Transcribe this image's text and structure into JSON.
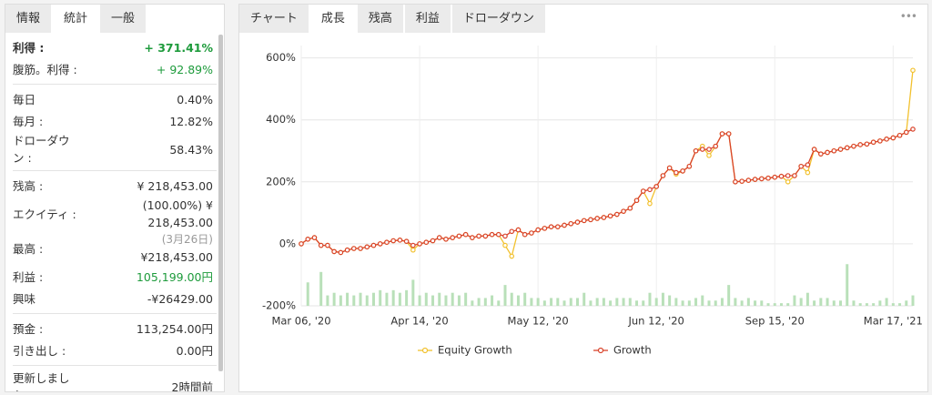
{
  "left_panel": {
    "tabs": [
      "情報",
      "統計",
      "一般"
    ],
    "active_tab": 1,
    "groups": [
      [
        {
          "label": "利得 :",
          "value": "+ 371.41%",
          "color": "#1e9b3c",
          "bold": true
        },
        {
          "label": "腹筋。利得 :",
          "value": "+ 92.89%",
          "color": "#1e9b3c"
        }
      ],
      [
        {
          "label": "毎日",
          "value": "0.40%"
        },
        {
          "label": "毎月 :",
          "value": "12.82%"
        },
        {
          "label": "ドローダウン :",
          "value": "58.43%"
        }
      ],
      [
        {
          "label": "残高 :",
          "value": "¥ 218,453.00"
        },
        {
          "label": "エクイティ :",
          "value": "(100.00%) ¥ 218,453.00"
        },
        {
          "label": "最高 :",
          "note": "(3月26日)",
          "value": "¥218,453.00"
        },
        {
          "label": "利益 :",
          "value": "105,199.00円",
          "color": "#1e9b3c"
        },
        {
          "label": "興味",
          "value": "-¥26429.00"
        }
      ],
      [
        {
          "label": "預金 :",
          "value": "113,254.00円"
        },
        {
          "label": "引き出し :",
          "value": "0.00円"
        }
      ],
      [
        {
          "label": "更新しました :",
          "value": "2時間前"
        }
      ]
    ]
  },
  "right_panel": {
    "tabs": [
      "チャート",
      "成長",
      "残高",
      "利益",
      "ドローダウン"
    ],
    "active_tab": 1,
    "menu": "•••"
  },
  "chart_data": {
    "type": "line",
    "categories": [
      "Mar 06, '20",
      null,
      null,
      null,
      null,
      null,
      null,
      null,
      null,
      null,
      null,
      null,
      null,
      null,
      null,
      null,
      null,
      null,
      "Apr 14, '20",
      null,
      null,
      null,
      null,
      null,
      null,
      null,
      null,
      null,
      null,
      null,
      null,
      null,
      null,
      null,
      null,
      null,
      "May 12, '20",
      null,
      null,
      null,
      null,
      null,
      null,
      null,
      null,
      null,
      null,
      null,
      null,
      null,
      null,
      null,
      null,
      null,
      "Jun 12, '20",
      null,
      null,
      null,
      null,
      null,
      null,
      null,
      null,
      null,
      null,
      null,
      null,
      null,
      null,
      null,
      null,
      null,
      "Sep 15, '20",
      null,
      null,
      null,
      null,
      null,
      null,
      null,
      null,
      null,
      null,
      null,
      null,
      null,
      null,
      null,
      null,
      null,
      "Mar 17, '21",
      null,
      null,
      null
    ],
    "series": [
      {
        "name": "Equity Growth",
        "color": "#f2c12e",
        "values": [
          0,
          15,
          20,
          -5,
          -5,
          -25,
          -28,
          -20,
          -15,
          -15,
          -10,
          -5,
          0,
          5,
          10,
          12,
          8,
          -20,
          0,
          5,
          10,
          20,
          15,
          20,
          25,
          30,
          20,
          25,
          25,
          30,
          30,
          -5,
          -40,
          45,
          30,
          35,
          45,
          50,
          55,
          55,
          60,
          65,
          70,
          75,
          78,
          82,
          85,
          90,
          95,
          105,
          115,
          140,
          170,
          130,
          185,
          220,
          245,
          225,
          235,
          250,
          300,
          315,
          285,
          315,
          355,
          355,
          200,
          202,
          205,
          208,
          210,
          212,
          215,
          218,
          200,
          220,
          250,
          230,
          305,
          290,
          295,
          300,
          305,
          310,
          315,
          320,
          322,
          328,
          332,
          338,
          342,
          350,
          360,
          560
        ]
      },
      {
        "name": "Growth",
        "color": "#d9432b",
        "values": [
          0,
          15,
          20,
          -5,
          -5,
          -25,
          -28,
          -20,
          -15,
          -15,
          -10,
          -5,
          0,
          5,
          10,
          12,
          8,
          -5,
          0,
          5,
          10,
          20,
          15,
          20,
          25,
          30,
          20,
          25,
          25,
          30,
          30,
          25,
          40,
          45,
          30,
          35,
          45,
          50,
          55,
          55,
          60,
          65,
          70,
          75,
          78,
          82,
          85,
          90,
          95,
          105,
          115,
          140,
          170,
          175,
          185,
          220,
          245,
          230,
          235,
          250,
          300,
          305,
          305,
          315,
          355,
          355,
          200,
          202,
          205,
          208,
          210,
          212,
          215,
          218,
          220,
          220,
          250,
          255,
          305,
          290,
          295,
          300,
          305,
          310,
          315,
          320,
          322,
          328,
          332,
          338,
          342,
          350,
          360,
          370
        ]
      },
      {
        "type": "bar",
        "axis": "y2",
        "color": "#b9e0b9",
        "values": [
          0,
          9,
          0,
          13,
          4,
          5,
          4,
          5,
          4,
          5,
          4,
          5,
          6,
          5,
          6,
          5,
          6,
          10,
          4,
          5,
          4,
          5,
          4,
          5,
          4,
          5,
          2,
          3,
          3,
          4,
          2,
          8,
          5,
          4,
          5,
          3,
          3,
          2,
          3,
          3,
          2,
          3,
          3,
          5,
          2,
          3,
          3,
          2,
          3,
          3,
          3,
          2,
          2,
          5,
          3,
          5,
          4,
          3,
          2,
          2,
          3,
          4,
          2,
          2,
          3,
          8,
          3,
          2,
          3,
          2,
          2,
          1,
          1,
          1,
          1,
          4,
          3,
          5,
          2,
          3,
          3,
          2,
          2,
          16,
          2,
          1,
          1,
          1,
          2,
          3,
          1,
          1,
          2,
          4
        ]
      }
    ],
    "ylim": [
      -200,
      640
    ],
    "yticks": [
      {
        "value": -200,
        "label": "-200%"
      },
      {
        "value": 0,
        "label": "0%"
      },
      {
        "value": 200,
        "label": "200%"
      },
      {
        "value": 400,
        "label": "400%"
      },
      {
        "value": 600,
        "label": "600%"
      }
    ],
    "y2lim": [
      0,
      100
    ],
    "grid": true,
    "legend": "bottom"
  }
}
